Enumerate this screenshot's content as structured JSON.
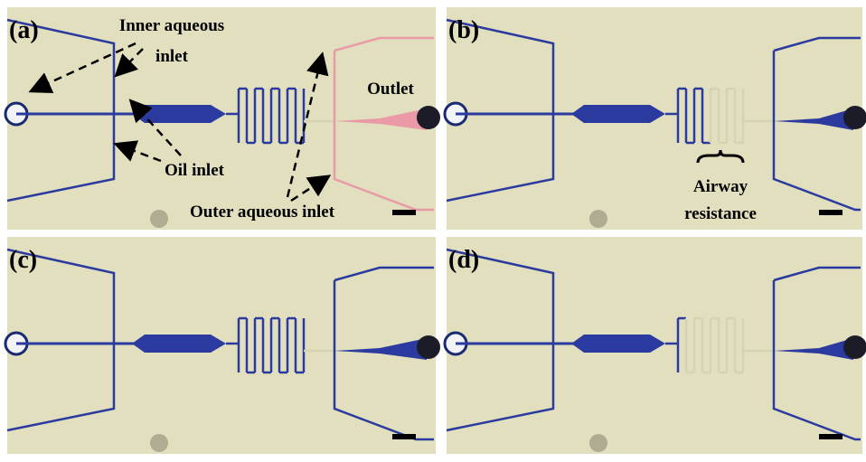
{
  "panels": [
    {
      "label": "(a)"
    },
    {
      "label": "(b)"
    },
    {
      "label": "(c)"
    },
    {
      "label": "(d)"
    }
  ],
  "annotations": {
    "inner_aqueous_inlet": [
      "Inner aqueous",
      "inlet"
    ],
    "oil_inlet": "Oil inlet",
    "outer_aqueous_inlet": "Outer aqueous inlet",
    "outlet": "Outlet",
    "airway_resistance": [
      "Airway",
      "resistance"
    ]
  }
}
